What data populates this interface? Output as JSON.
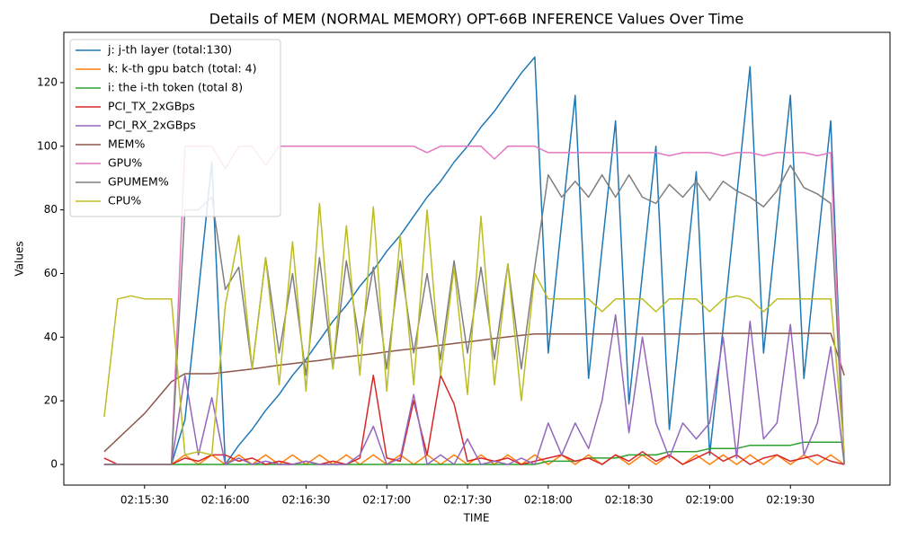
{
  "chart_data": {
    "type": "line",
    "title": "Details of MEM (NORMAL MEMORY) OPT-66B INFERENCE Values Over Time",
    "x_label": "TIME",
    "y_label": "Values",
    "x": [
      "02:15:15",
      "02:15:20",
      "02:15:25",
      "02:15:30",
      "02:15:35",
      "02:15:40",
      "02:15:45",
      "02:15:50",
      "02:15:55",
      "02:16:00",
      "02:16:05",
      "02:16:10",
      "02:16:15",
      "02:16:20",
      "02:16:25",
      "02:16:30",
      "02:16:35",
      "02:16:40",
      "02:16:45",
      "02:16:50",
      "02:16:55",
      "02:17:00",
      "02:17:05",
      "02:17:10",
      "02:17:15",
      "02:17:20",
      "02:17:25",
      "02:17:30",
      "02:17:35",
      "02:17:40",
      "02:17:45",
      "02:17:50",
      "02:17:55",
      "02:18:00",
      "02:18:05",
      "02:18:10",
      "02:18:15",
      "02:18:20",
      "02:18:25",
      "02:18:30",
      "02:18:35",
      "02:18:40",
      "02:18:45",
      "02:18:50",
      "02:18:55",
      "02:19:00",
      "02:19:05",
      "02:19:10",
      "02:19:15",
      "02:19:20",
      "02:19:25",
      "02:19:30",
      "02:19:35",
      "02:19:40",
      "02:19:45",
      "02:19:50"
    ],
    "xlim": [
      "02:15:00",
      "02:20:07"
    ],
    "xticks": [
      "02:15:30",
      "02:16:00",
      "02:16:30",
      "02:17:00",
      "02:17:30",
      "02:18:00",
      "02:18:30",
      "02:19:00",
      "02:19:30"
    ],
    "ylim": [
      -6.5,
      135.8
    ],
    "yticks": [
      0,
      20,
      40,
      60,
      80,
      100,
      120
    ],
    "legend": "upper left",
    "series": [
      {
        "name": "j: j-th layer (total:130)",
        "color": "#1f77b4",
        "values": [
          0,
          0,
          0,
          0,
          0,
          0,
          14,
          54,
          95,
          0,
          6,
          11,
          17,
          22,
          28,
          33,
          39,
          45,
          50,
          56,
          61,
          67,
          72,
          78,
          84,
          89,
          95,
          100,
          106,
          111,
          117,
          123,
          128,
          35,
          76,
          116,
          27,
          68,
          108,
          19,
          60,
          100,
          11,
          51,
          92,
          3,
          43,
          84,
          125,
          35,
          76,
          116,
          27,
          68,
          108,
          0
        ]
      },
      {
        "name": "k: k-th gpu batch (total: 4)",
        "color": "#ff7f0e",
        "values": [
          0,
          0,
          0,
          0,
          0,
          0,
          3,
          0,
          3,
          0,
          3,
          0,
          3,
          0,
          3,
          0,
          3,
          0,
          3,
          0,
          3,
          0,
          3,
          0,
          3,
          0,
          3,
          0,
          3,
          0,
          3,
          0,
          3,
          0,
          3,
          0,
          3,
          0,
          3,
          0,
          3,
          0,
          3,
          0,
          3,
          0,
          3,
          0,
          3,
          0,
          3,
          0,
          3,
          0,
          3,
          0
        ]
      },
      {
        "name": "i: the i-th token (total 8)",
        "color": "#2ca02c",
        "values": [
          0,
          0,
          0,
          0,
          0,
          0,
          0,
          0,
          0,
          0,
          0,
          0,
          0,
          0,
          0,
          0,
          0,
          0,
          0,
          0,
          0,
          0,
          0,
          0,
          0,
          0,
          0,
          0,
          0,
          0,
          0,
          0,
          0,
          1,
          1,
          1,
          2,
          2,
          2,
          3,
          3,
          3,
          4,
          4,
          4,
          5,
          5,
          5,
          6,
          6,
          6,
          6,
          7,
          7,
          7,
          7
        ]
      },
      {
        "name": "PCI_TX_2xGBps",
        "color": "#d62728",
        "values": [
          2,
          0,
          0,
          0,
          0,
          0,
          2,
          1,
          3,
          3,
          1,
          2,
          0,
          1,
          0,
          1,
          0,
          1,
          0,
          2,
          28,
          2,
          1,
          20,
          3,
          28,
          19,
          1,
          2,
          1,
          2,
          0,
          1,
          2,
          3,
          1,
          2,
          0,
          3,
          1,
          4,
          1,
          3,
          0,
          2,
          4,
          1,
          3,
          0,
          2,
          3,
          1,
          2,
          3,
          1,
          0
        ]
      },
      {
        "name": "PCI_RX_2xGBps",
        "color": "#9467bd",
        "values": [
          0,
          0,
          0,
          0,
          0,
          0,
          28,
          3,
          21,
          0,
          2,
          0,
          1,
          0,
          0,
          1,
          0,
          0,
          0,
          3,
          12,
          0,
          2,
          22,
          0,
          3,
          0,
          8,
          0,
          1,
          0,
          2,
          0,
          13,
          3,
          13,
          5,
          20,
          47,
          10,
          40,
          13,
          2,
          13,
          8,
          13,
          40,
          2,
          45,
          8,
          13,
          44,
          3,
          13,
          37,
          0
        ]
      },
      {
        "name": "MEM%",
        "color": "#8c564b",
        "values": [
          4,
          8,
          12,
          16,
          21,
          26,
          28.5,
          28.5,
          28.5,
          29,
          29.5,
          30,
          30.6,
          31.2,
          31.7,
          32.2,
          32.7,
          33.3,
          33.8,
          34.3,
          34.8,
          35.4,
          35.9,
          36.4,
          36.9,
          37.5,
          38,
          38.5,
          39,
          39.6,
          40.1,
          40.6,
          41,
          41,
          41,
          41,
          41,
          41,
          41,
          41,
          41,
          41,
          41,
          41,
          41,
          41.2,
          41.2,
          41.2,
          41.2,
          41.2,
          41.2,
          41.2,
          41.2,
          41.2,
          41.2,
          28
        ]
      },
      {
        "name": "GPU%",
        "color": "#e377c2",
        "values": [
          0,
          0,
          0,
          0,
          0,
          0,
          100,
          100,
          100,
          93,
          100,
          100,
          94,
          100,
          100,
          100,
          100,
          100,
          100,
          100,
          100,
          100,
          100,
          100,
          98,
          100,
          100,
          100,
          100,
          96,
          100,
          100,
          100,
          98,
          98,
          98,
          98,
          98,
          98,
          98,
          98,
          98,
          97,
          98,
          98,
          98,
          97,
          98,
          98,
          97,
          98,
          98,
          98,
          97,
          98,
          0
        ]
      },
      {
        "name": "GPUMEM%",
        "color": "#7f7f7f",
        "values": [
          0,
          0,
          0,
          0,
          0,
          0,
          80,
          80,
          84,
          55,
          62,
          30,
          65,
          35,
          60,
          28,
          65,
          30,
          64,
          38,
          62,
          30,
          64,
          35,
          60,
          33,
          64,
          35,
          62,
          33,
          63,
          30,
          62,
          91,
          84,
          89,
          84,
          91,
          84,
          91,
          84,
          82,
          88,
          84,
          89,
          83,
          89,
          86,
          84,
          81,
          86,
          94,
          87,
          85,
          82,
          0
        ]
      },
      {
        "name": "CPU%",
        "color": "#bcbd22",
        "values": [
          15,
          52,
          53,
          52,
          52,
          52,
          3,
          4,
          3,
          50,
          72,
          30,
          65,
          25,
          70,
          23,
          82,
          30,
          75,
          28,
          81,
          23,
          72,
          25,
          80,
          28,
          62,
          22,
          78,
          25,
          63,
          20,
          60,
          52,
          52,
          52,
          52,
          48,
          52,
          52,
          52,
          48,
          52,
          52,
          52,
          48,
          52,
          53,
          52,
          48,
          52,
          52,
          52,
          52,
          52,
          4
        ]
      }
    ]
  }
}
